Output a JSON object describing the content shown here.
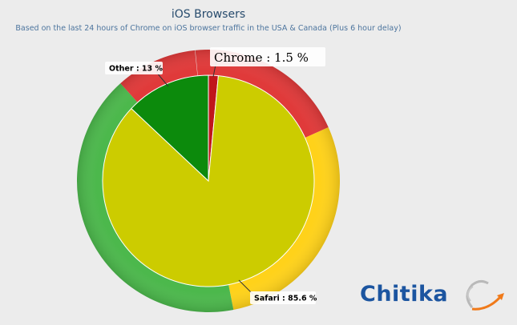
{
  "chart_data": {
    "type": "pie",
    "title": "iOS Browsers",
    "subtitle": "Based on the last 24 hours of Chrome on iOS browser traffic in the USA & Canada (Plus 6 hour delay)",
    "slices": [
      {
        "name": "Chrome",
        "value": 1.5,
        "label": "Chrome : 1.5 %",
        "color": "#c0161b"
      },
      {
        "name": "Safari",
        "value": 85.6,
        "label": "Safari : 85.6 %",
        "color": "#cccc00"
      },
      {
        "name": "Other",
        "value": 13,
        "label": "Other : 13 %",
        "color": "#0c8a0c"
      }
    ],
    "ring_colors": [
      "#e03a3a",
      "#ffd21a",
      "#4cb84c"
    ],
    "legend": "none"
  },
  "logo": {
    "text": "Chitika",
    "color": "#1c55a0",
    "accent_color": "#f07a1a"
  }
}
